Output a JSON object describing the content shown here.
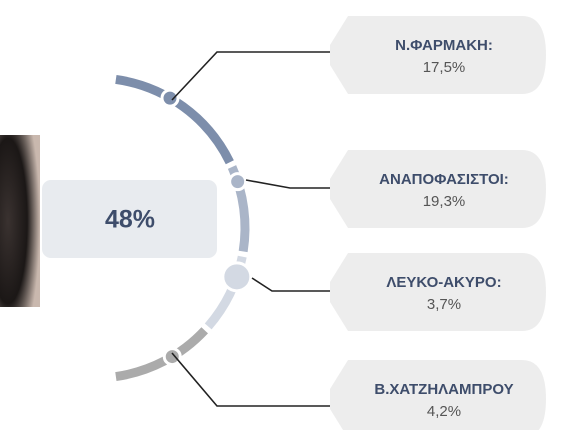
{
  "center": "48%",
  "items": [
    {
      "label": "Ν.ΦΑΡΜΑΚΗ:",
      "value": "17,5%"
    },
    {
      "label": "ΑΝΑΠΟΦΑΣΙΣΤΟΙ:",
      "value": "19,3%"
    },
    {
      "label": "ΛΕΥΚΟ-ΑΚΥΡΟ:",
      "value": "3,7%"
    },
    {
      "label": "Β.ΧΑΤΖΗΛΑΜΠΡΟΥ",
      "value": "4,2%"
    }
  ]
}
